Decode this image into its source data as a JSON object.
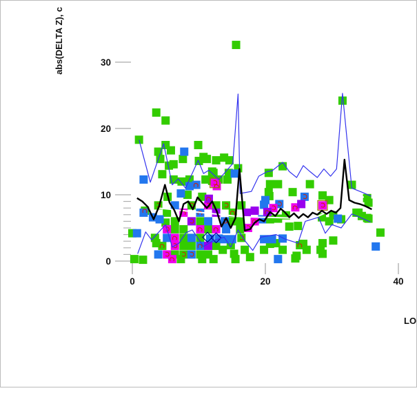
{
  "window": {
    "border_color": "#bbbbbb"
  },
  "chart_data": {
    "type": "scatter",
    "title": "",
    "xlabel": "LO",
    "ylabel": "abs(DELTA Z), c",
    "xlim": [
      -1,
      42
    ],
    "ylim": [
      -1,
      33
    ],
    "x_ticks": [
      0,
      20,
      40
    ],
    "y_ticks": [
      0,
      10,
      20,
      30
    ],
    "y_minor_ticks": [
      1,
      2,
      3,
      4,
      5,
      6,
      7,
      8,
      9
    ],
    "grid": false,
    "legend": "none",
    "marker": "square",
    "colors": {
      "green": "#33CC00",
      "blue": "#2277EE",
      "magenta": "#EE00EE",
      "purple": "#9900EE",
      "contour": "#CC2200",
      "line_blue": "#3333EE",
      "line_black": "#000000",
      "line_white": "#FFFFFF",
      "tick": "#AAAAAA",
      "outline": "#997700",
      "diamond": "#000099"
    },
    "squares": [
      [
        15.6,
        32.6,
        "g"
      ],
      [
        3.6,
        22.4,
        "g"
      ],
      [
        5.0,
        21.2,
        "g"
      ],
      [
        31.6,
        24.2,
        "g"
      ],
      [
        1.0,
        18.3,
        "g"
      ],
      [
        5.0,
        17.5,
        "g"
      ],
      [
        9.9,
        17.5,
        "g"
      ],
      [
        3.9,
        16.5,
        "g"
      ],
      [
        5.8,
        16.7,
        "g"
      ],
      [
        7.8,
        16.5,
        "b"
      ],
      [
        10.7,
        15.7,
        "g"
      ],
      [
        4.2,
        15.4,
        "g"
      ],
      [
        7.6,
        15.4,
        "g"
      ],
      [
        10.0,
        15.1,
        "g"
      ],
      [
        11.2,
        15.4,
        "g"
      ],
      [
        12.6,
        15.2,
        "g"
      ],
      [
        13.8,
        15.6,
        "g"
      ],
      [
        14.6,
        15.2,
        "g"
      ],
      [
        15.9,
        14.0,
        "g"
      ],
      [
        15.4,
        13.2,
        "b"
      ],
      [
        5.5,
        14.4,
        "g"
      ],
      [
        6.2,
        14.6,
        "g"
      ],
      [
        4.5,
        13.1,
        "g"
      ],
      [
        12.0,
        13.5,
        "g"
      ],
      [
        12.2,
        13.3,
        "g"
      ],
      [
        14.5,
        13.3,
        "g"
      ],
      [
        20.5,
        13.3,
        "g"
      ],
      [
        22.6,
        14.3,
        "g"
      ],
      [
        1.7,
        12.3,
        "b"
      ],
      [
        6.2,
        12.3,
        "g"
      ],
      [
        7.4,
        12.0,
        "g"
      ],
      [
        8.6,
        12.3,
        "g"
      ],
      [
        11.0,
        12.3,
        "g"
      ],
      [
        12.0,
        12.1,
        "g"
      ],
      [
        13.0,
        12.3,
        "g"
      ],
      [
        14.3,
        12.3,
        "g"
      ],
      [
        12.4,
        11.8,
        "m"
      ],
      [
        12.7,
        11.3,
        "m"
      ],
      [
        8.6,
        11.3,
        "b"
      ],
      [
        9.6,
        11.5,
        "b"
      ],
      [
        20.7,
        11.6,
        "g"
      ],
      [
        21.9,
        11.6,
        "g"
      ],
      [
        24.1,
        10.4,
        "g"
      ],
      [
        26.7,
        11.6,
        "g"
      ],
      [
        33.0,
        11.5,
        "g"
      ],
      [
        7.3,
        10.2,
        "b"
      ],
      [
        8.3,
        10.0,
        "g"
      ],
      [
        11.5,
        9.4,
        "p"
      ],
      [
        5.3,
        9.7,
        "g"
      ],
      [
        10.5,
        9.7,
        "g"
      ],
      [
        14.1,
        8.4,
        "g"
      ],
      [
        28.6,
        9.9,
        "g"
      ],
      [
        29.6,
        9.2,
        "g"
      ],
      [
        35.3,
        9.5,
        "g"
      ],
      [
        20.0,
        9.2,
        "b"
      ],
      [
        25.9,
        9.7,
        "b"
      ],
      [
        24.5,
        8.1,
        "m"
      ],
      [
        25.4,
        8.6,
        "p"
      ],
      [
        28.6,
        8.4,
        "m"
      ],
      [
        20.3,
        7.4,
        "p"
      ],
      [
        19.8,
        8.5,
        "b"
      ],
      [
        21.2,
        8.0,
        "m"
      ],
      [
        22.1,
        8.6,
        "b"
      ],
      [
        17.2,
        7.3,
        "p"
      ],
      [
        18.4,
        7.6,
        "p"
      ],
      [
        18.4,
        6.0,
        "m"
      ],
      [
        19.5,
        6.3,
        "b"
      ],
      [
        20.6,
        9.8,
        "g"
      ],
      [
        20.5,
        10.4,
        "g"
      ],
      [
        16.2,
        6.0,
        "g"
      ],
      [
        16.2,
        4.8,
        "g"
      ],
      [
        17.4,
        5.0,
        "m"
      ],
      [
        20.7,
        6.3,
        "g"
      ],
      [
        21.9,
        6.4,
        "g"
      ],
      [
        23.1,
        6.9,
        "g"
      ],
      [
        23.6,
        5.2,
        "g"
      ],
      [
        24.9,
        5.3,
        "g"
      ],
      [
        25.2,
        2.4,
        "g"
      ],
      [
        22.6,
        3.4,
        "b"
      ],
      [
        21.9,
        0.3,
        "b"
      ],
      [
        24.5,
        0.4,
        "g"
      ],
      [
        28.5,
        6.6,
        "g"
      ],
      [
        29.6,
        6.0,
        "g"
      ],
      [
        30.2,
        6.9,
        "g"
      ],
      [
        30.9,
        6.4,
        "b"
      ],
      [
        31.4,
        6.3,
        "g"
      ],
      [
        33.7,
        7.3,
        "g"
      ],
      [
        34.5,
        6.8,
        "g"
      ],
      [
        35.5,
        6.4,
        "g"
      ],
      [
        30.2,
        3.1,
        "g"
      ],
      [
        28.6,
        1.1,
        "g"
      ],
      [
        20.7,
        2.6,
        "g"
      ],
      [
        21.6,
        2.7,
        "g"
      ],
      [
        22.6,
        1.7,
        "g"
      ],
      [
        24.7,
        0.8,
        "g"
      ],
      [
        25.7,
        2.6,
        "g"
      ],
      [
        26.2,
        1.7,
        "g"
      ],
      [
        28.3,
        1.7,
        "g"
      ],
      [
        28.6,
        2.7,
        "g"
      ],
      [
        19.8,
        1.7,
        "g"
      ],
      [
        17.7,
        0.6,
        "g"
      ],
      [
        16.9,
        1.7,
        "g"
      ],
      [
        15.3,
        1.1,
        "g"
      ],
      [
        13.6,
        1.7,
        "g"
      ],
      [
        14.8,
        2.4,
        "g"
      ],
      [
        35.5,
        8.8,
        "g"
      ],
      [
        34.0,
        7.3,
        "g"
      ],
      [
        35.3,
        6.5,
        "g"
      ],
      [
        37.3,
        4.3,
        "g"
      ],
      [
        36.6,
        2.2,
        "b"
      ],
      [
        0.3,
        0.3,
        "g"
      ],
      [
        1.6,
        0.2,
        "g"
      ],
      [
        1.9,
        7.6,
        "g"
      ],
      [
        1.7,
        7.3,
        "b"
      ],
      [
        3.1,
        6.6,
        "b"
      ],
      [
        4.1,
        6.3,
        "b"
      ],
      [
        0.0,
        4.2,
        "g"
      ],
      [
        0.7,
        4.2,
        "b"
      ],
      [
        3.6,
        2.7,
        "g"
      ],
      [
        5.0,
        5.8,
        "g"
      ],
      [
        3.9,
        8.4,
        "g"
      ],
      [
        6.4,
        8.4,
        "b"
      ],
      [
        8.9,
        8.4,
        "g"
      ],
      [
        11.4,
        8.4,
        "m"
      ],
      [
        12.6,
        8.4,
        "g"
      ],
      [
        16.4,
        8.4,
        "g"
      ],
      [
        5.2,
        7.3,
        "g"
      ],
      [
        7.7,
        7.3,
        "m"
      ],
      [
        10.2,
        7.3,
        "b"
      ],
      [
        12.6,
        7.3,
        "p"
      ],
      [
        15.1,
        7.3,
        "g"
      ],
      [
        6.4,
        6.0,
        "g"
      ],
      [
        8.9,
        6.0,
        "p"
      ],
      [
        10.2,
        6.0,
        "g"
      ],
      [
        11.4,
        6.0,
        "b"
      ],
      [
        13.9,
        6.0,
        "b"
      ],
      [
        15.1,
        6.0,
        "g"
      ],
      [
        5.2,
        4.8,
        "m"
      ],
      [
        6.4,
        4.8,
        "g"
      ],
      [
        7.7,
        4.8,
        "g"
      ],
      [
        10.2,
        4.8,
        "m"
      ],
      [
        11.4,
        4.8,
        "g"
      ],
      [
        12.6,
        4.8,
        "m"
      ],
      [
        14.1,
        4.8,
        "b"
      ],
      [
        3.4,
        3.5,
        "g"
      ],
      [
        5.2,
        3.5,
        "b"
      ],
      [
        6.4,
        3.5,
        "m"
      ],
      [
        7.7,
        3.5,
        "g"
      ],
      [
        8.9,
        3.5,
        "b"
      ],
      [
        10.2,
        3.5,
        "g"
      ],
      [
        11.7,
        3.4,
        "b"
      ],
      [
        13.0,
        3.4,
        "b"
      ],
      [
        13.8,
        3.3,
        "b"
      ],
      [
        15.0,
        3.3,
        "b"
      ],
      [
        16.4,
        3.5,
        "g"
      ],
      [
        19.8,
        3.3,
        "b"
      ],
      [
        21.0,
        3.3,
        "b"
      ],
      [
        4.5,
        2.3,
        "g"
      ],
      [
        6.4,
        2.3,
        "m"
      ],
      [
        7.7,
        2.3,
        "g"
      ],
      [
        8.9,
        2.3,
        "g"
      ],
      [
        10.2,
        2.3,
        "b"
      ],
      [
        11.4,
        2.3,
        "p"
      ],
      [
        12.6,
        2.3,
        "g"
      ],
      [
        3.9,
        1.0,
        "b"
      ],
      [
        5.2,
        1.0,
        "m"
      ],
      [
        6.4,
        1.0,
        "g"
      ],
      [
        7.7,
        1.0,
        "g"
      ],
      [
        8.9,
        1.0,
        "b"
      ],
      [
        10.2,
        1.0,
        "g"
      ],
      [
        11.4,
        1.0,
        "g"
      ],
      [
        6.0,
        0.3,
        "m"
      ],
      [
        7.3,
        0.3,
        "g"
      ],
      [
        10.5,
        0.3,
        "g"
      ],
      [
        12.2,
        0.3,
        "g"
      ],
      [
        15.5,
        0.3,
        "g"
      ]
    ],
    "lines": {
      "upper_envelope": [
        [
          1.0,
          18.3
        ],
        [
          2.7,
          11.9
        ],
        [
          4.7,
          17.7
        ],
        [
          6.0,
          11.5
        ],
        [
          6.9,
          12.4
        ],
        [
          8.0,
          11.0
        ],
        [
          9.9,
          15.2
        ],
        [
          10.7,
          13.2
        ],
        [
          11.5,
          13.7
        ],
        [
          13.0,
          12.3
        ],
        [
          15.1,
          14.7
        ],
        [
          15.9,
          25.2
        ],
        [
          16.2,
          10.2
        ],
        [
          17.9,
          10.5
        ],
        [
          19.0,
          12.8
        ],
        [
          20.3,
          13.5
        ],
        [
          21.0,
          13.6
        ],
        [
          22.6,
          14.9
        ],
        [
          23.6,
          13.5
        ],
        [
          24.7,
          12.6
        ],
        [
          25.7,
          14.4
        ],
        [
          26.7,
          13.5
        ],
        [
          27.8,
          12.6
        ],
        [
          28.8,
          13.9
        ],
        [
          29.8,
          12.8
        ],
        [
          30.7,
          13.9
        ],
        [
          31.6,
          25.3
        ],
        [
          33.0,
          11.0
        ],
        [
          34.5,
          10.4
        ],
        [
          35.9,
          9.8
        ]
      ],
      "median": [
        [
          0.7,
          9.5
        ],
        [
          1.5,
          9.0
        ],
        [
          2.3,
          8.2
        ],
        [
          3.2,
          6.3
        ],
        [
          4.0,
          8.2
        ],
        [
          4.9,
          11.5
        ],
        [
          5.6,
          8.8
        ],
        [
          6.3,
          7.7
        ],
        [
          7.0,
          6.0
        ],
        [
          7.7,
          8.6
        ],
        [
          8.4,
          9.0
        ],
        [
          9.1,
          7.8
        ],
        [
          9.8,
          9.6
        ],
        [
          10.5,
          8.8
        ],
        [
          11.2,
          8.0
        ],
        [
          12.0,
          9.0
        ],
        [
          12.7,
          7.5
        ],
        [
          13.4,
          5.2
        ],
        [
          14.1,
          6.5
        ],
        [
          14.8,
          5.0
        ],
        [
          15.5,
          6.5
        ],
        [
          16.1,
          13.9
        ],
        [
          16.9,
          4.6
        ],
        [
          17.7,
          4.8
        ],
        [
          18.4,
          5.8
        ],
        [
          19.1,
          6.3
        ],
        [
          19.8,
          6.0
        ],
        [
          20.7,
          7.4
        ],
        [
          21.5,
          6.8
        ],
        [
          22.3,
          7.9
        ],
        [
          22.9,
          7.4
        ],
        [
          23.6,
          6.6
        ],
        [
          24.3,
          7.2
        ],
        [
          25.0,
          6.5
        ],
        [
          25.7,
          7.1
        ],
        [
          26.4,
          6.6
        ],
        [
          27.1,
          7.3
        ],
        [
          27.8,
          7.0
        ],
        [
          28.5,
          7.6
        ],
        [
          29.2,
          7.1
        ],
        [
          29.9,
          7.6
        ],
        [
          30.6,
          7.3
        ],
        [
          31.3,
          8.0
        ],
        [
          31.9,
          15.3
        ],
        [
          32.6,
          9.2
        ],
        [
          33.4,
          8.8
        ],
        [
          34.2,
          8.6
        ],
        [
          35.0,
          8.3
        ],
        [
          36.0,
          7.8
        ]
      ],
      "lower_envelope": [
        [
          0.8,
          1.1
        ],
        [
          2.0,
          4.4
        ],
        [
          2.9,
          3.2
        ],
        [
          5.0,
          5.5
        ],
        [
          6.0,
          2.1
        ],
        [
          7.0,
          2.7
        ],
        [
          8.1,
          4.3
        ],
        [
          9.0,
          4.7
        ],
        [
          10.7,
          2.2
        ],
        [
          12.2,
          3.1
        ],
        [
          13.8,
          3.6
        ],
        [
          14.8,
          2.1
        ],
        [
          15.9,
          4.7
        ],
        [
          16.9,
          3.1
        ],
        [
          18.1,
          1.6
        ],
        [
          19.3,
          3.6
        ],
        [
          21.6,
          4.0
        ],
        [
          23.0,
          3.3
        ],
        [
          24.9,
          2.7
        ],
        [
          26.0,
          6.0
        ],
        [
          28.0,
          6.6
        ],
        [
          29.0,
          4.2
        ],
        [
          30.0,
          5.5
        ],
        [
          31.4,
          5.0
        ],
        [
          33.0,
          7.1
        ],
        [
          34.2,
          6.6
        ],
        [
          35.8,
          5.9
        ]
      ],
      "white_line": [
        [
          3.9,
          8.0
        ],
        [
          16.4,
          6.7
        ],
        [
          23.6,
          6.5
        ],
        [
          28.0,
          6.8
        ],
        [
          30.4,
          7.9
        ],
        [
          34.8,
          9.7
        ]
      ]
    },
    "contour_marks": [
      [
        5.2,
        4.8
      ],
      [
        6.4,
        3.5
      ],
      [
        6.4,
        2.3
      ],
      [
        7.7,
        7.3
      ],
      [
        8.9,
        8.4
      ],
      [
        10.2,
        4.8
      ],
      [
        11.4,
        8.4
      ],
      [
        12.6,
        4.8
      ],
      [
        12.4,
        11.8
      ],
      [
        12.7,
        11.3
      ],
      [
        14.1,
        8.4
      ],
      [
        11.5,
        9.4
      ],
      [
        5.2,
        1.0
      ],
      [
        6.0,
        0.3
      ],
      [
        8.9,
        1.0
      ],
      [
        10.2,
        2.3
      ],
      [
        21.2,
        8.0
      ],
      [
        24.5,
        8.1
      ],
      [
        28.6,
        8.4
      ],
      [
        25.2,
        2.4
      ],
      [
        17.4,
        5.0
      ],
      [
        18.4,
        6.0
      ],
      [
        3.9,
        8.4
      ],
      [
        4.5,
        2.3
      ],
      [
        7.7,
        1.0
      ],
      [
        9.6,
        11.5
      ],
      [
        13.9,
        6.0
      ],
      [
        15.1,
        7.3
      ],
      [
        16.4,
        3.5
      ],
      [
        20.3,
        7.4
      ],
      [
        22.1,
        8.6
      ],
      [
        10.2,
        7.3
      ],
      [
        8.9,
        6.0
      ],
      [
        1.9,
        7.6
      ],
      [
        25.9,
        9.7
      ]
    ],
    "outline_marks": [
      [
        12.4,
        11.8
      ],
      [
        28.6,
        8.4
      ]
    ],
    "diamond_marks": [
      [
        11.3,
        3.6
      ],
      [
        12.6,
        3.5
      ]
    ]
  }
}
